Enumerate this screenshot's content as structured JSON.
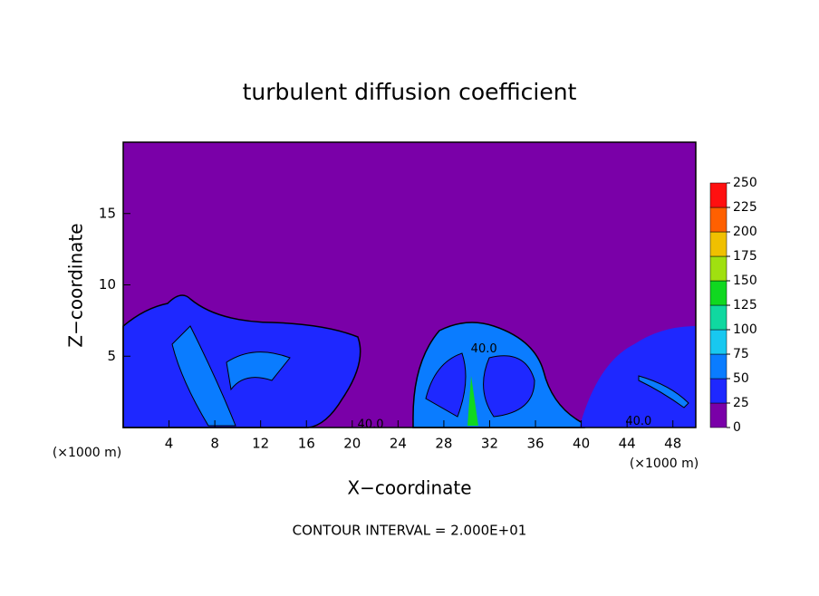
{
  "chart_data": {
    "type": "contour",
    "title": "turbulent diffusion coefficient",
    "xlabel": "X−coordinate",
    "ylabel": "Z−coordinate",
    "x_unit": "(×1000 m)",
    "xlim": [
      0,
      50
    ],
    "xticks": [
      4,
      8,
      12,
      16,
      20,
      24,
      28,
      32,
      36,
      40,
      44,
      48
    ],
    "ylim": [
      0,
      20
    ],
    "yticks": [
      5,
      10,
      15
    ],
    "colorbar": {
      "lim": [
        0,
        250
      ],
      "ticks": [
        0,
        25,
        50,
        75,
        100,
        125,
        150,
        175,
        200,
        225,
        250
      ],
      "colors": [
        "#7a00a8",
        "#1e28ff",
        "#0a7cff",
        "#18c8f0",
        "#10d8a0",
        "#10d820",
        "#a0e010",
        "#f0c000",
        "#ff6000",
        "#ff1010"
      ]
    },
    "contour_labels": [
      {
        "x": 31.5,
        "z": 5.5,
        "value": 40,
        "label": "40.0"
      },
      {
        "x": 21.6,
        "z": 0.2,
        "value": 40,
        "label": "40.0"
      },
      {
        "x": 45,
        "z": 0.4,
        "value": 40,
        "label": "40.0"
      }
    ],
    "annotation": "CONTOUR INTERVAL = 2.000E+01"
  }
}
